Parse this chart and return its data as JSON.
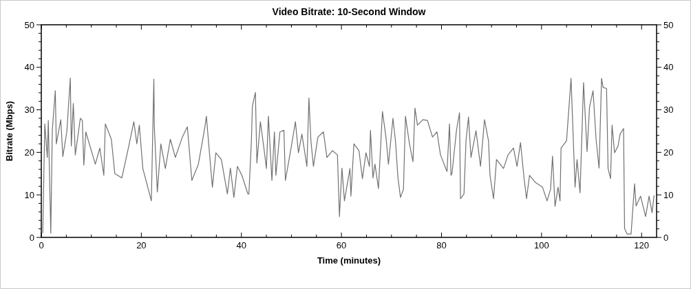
{
  "chart_data": {
    "type": "line",
    "title": "Video Bitrate: 10-Second Window",
    "xlabel": "Time (minutes)",
    "ylabel": "Bitrate (Mbps)",
    "xlim": [
      0,
      123
    ],
    "xticks": [
      0,
      {
        "value": 5,
        "label": null
      },
      {
        "value": 10,
        "label": null
      },
      {
        "value": 15,
        "label": null
      },
      20,
      {
        "value": 25,
        "label": null
      },
      {
        "value": 30,
        "label": null
      },
      {
        "value": 35,
        "label": null
      },
      40,
      {
        "value": 45,
        "label": null
      },
      {
        "value": 50,
        "label": null
      },
      {
        "value": 55,
        "label": null
      },
      60,
      {
        "value": 65,
        "label": null
      },
      {
        "value": 70,
        "label": null
      },
      {
        "value": 75,
        "label": null
      },
      80,
      {
        "value": 85,
        "label": null
      },
      {
        "value": 90,
        "label": null
      },
      {
        "value": 95,
        "label": null
      },
      100,
      {
        "value": 105,
        "label": null
      },
      {
        "value": 110,
        "label": null
      },
      {
        "value": 115,
        "label": null
      },
      120
    ],
    "ylim": [
      0,
      50
    ],
    "yticks": [
      0,
      {
        "value": 2,
        "label": null
      },
      {
        "value": 4,
        "label": null
      },
      {
        "value": 6,
        "label": null
      },
      {
        "value": 8,
        "label": null
      },
      10,
      {
        "value": 12,
        "label": null
      },
      {
        "value": 14,
        "label": null
      },
      {
        "value": 16,
        "label": null
      },
      {
        "value": 18,
        "label": null
      },
      20,
      {
        "value": 22,
        "label": null
      },
      {
        "value": 24,
        "label": null
      },
      {
        "value": 26,
        "label": null
      },
      {
        "value": 28,
        "label": null
      },
      30,
      {
        "value": 32,
        "label": null
      },
      {
        "value": 34,
        "label": null
      },
      {
        "value": 36,
        "label": null
      },
      {
        "value": 38,
        "label": null
      },
      40,
      {
        "value": 42,
        "label": null
      },
      {
        "value": 44,
        "label": null
      },
      {
        "value": 46,
        "label": null
      },
      {
        "value": 48,
        "label": null
      },
      50
    ],
    "y2lim": [
      0,
      50
    ],
    "y2ticks": [
      0,
      {
        "value": 2,
        "label": null
      },
      {
        "value": 4,
        "label": null
      },
      {
        "value": 6,
        "label": null
      },
      {
        "value": 8,
        "label": null
      },
      10,
      {
        "value": 12,
        "label": null
      },
      {
        "value": 14,
        "label": null
      },
      {
        "value": 16,
        "label": null
      },
      {
        "value": 18,
        "label": null
      },
      20,
      {
        "value": 22,
        "label": null
      },
      {
        "value": 24,
        "label": null
      },
      {
        "value": 26,
        "label": null
      },
      {
        "value": 28,
        "label": null
      },
      30,
      {
        "value": 32,
        "label": null
      },
      {
        "value": 34,
        "label": null
      },
      {
        "value": 36,
        "label": null
      },
      {
        "value": 38,
        "label": null
      },
      40,
      {
        "value": 42,
        "label": null
      },
      {
        "value": 44,
        "label": null
      },
      {
        "value": 46,
        "label": null
      },
      {
        "value": 48,
        "label": null
      },
      50
    ],
    "marker": "none",
    "line_style": "solid",
    "series": [
      {
        "color": "#707070",
        "x": [
          0.3,
          0.7,
          1.2,
          1.4,
          1.9,
          2.2,
          2.8,
          3.0,
          3.9,
          4.3,
          5.1,
          5.8,
          6.0,
          6.4,
          6.8,
          7.8,
          8.2,
          8.5,
          8.9,
          10.8,
          11.7,
          12.5,
          12.8,
          14.0,
          14.7,
          16.1,
          17.2,
          18.5,
          19.1,
          19.6,
          20.3,
          22.0,
          22.5,
          22.6,
          23.2,
          23.9,
          24.8,
          25.8,
          26.8,
          28.2,
          29.2,
          30.1,
          31.4,
          32.7,
          33.0,
          34.2,
          34.9,
          36.0,
          37.2,
          37.8,
          38.5,
          39.2,
          40.1,
          41.3,
          41.5,
          42.0,
          42.2,
          42.8,
          43.1,
          43.8,
          44.5,
          45.0,
          45.4,
          46.1,
          46.6,
          46.9,
          47.7,
          48.5,
          48.8,
          50.0,
          50.8,
          51.4,
          52.1,
          53.1,
          53.5,
          53.9,
          54.4,
          55.3,
          56.4,
          57.1,
          58.2,
          59.2,
          59.6,
          60.1,
          60.6,
          61.7,
          61.9,
          62.5,
          63.5,
          64.2,
          64.9,
          65.6,
          65.8,
          66.3,
          66.7,
          67.4,
          68.2,
          68.9,
          69.4,
          70.3,
          70.8,
          71.3,
          71.8,
          72.4,
          72.8,
          73.6,
          74.3,
          74.7,
          75.2,
          76.3,
          77.2,
          78.2,
          79.1,
          79.8,
          81.1,
          81.6,
          81.9,
          82.1,
          83.0,
          83.6,
          83.8,
          84.5,
          84.9,
          85.4,
          85.9,
          86.9,
          87.8,
          88.6,
          89.4,
          89.7,
          90.4,
          91.0,
          92.4,
          93.3,
          94.4,
          95.1,
          95.8,
          96.5,
          97.0,
          97.6,
          98.8,
          100.2,
          101.1,
          101.8,
          102.2,
          102.7,
          103.3,
          103.7,
          103.9,
          105.0,
          105.9,
          106.7,
          107.1,
          107.7,
          108.4,
          109.1,
          109.6,
          110.3,
          110.9,
          111.5,
          112.0,
          112.3,
          113.0,
          113.3,
          113.8,
          114.1,
          114.6,
          115.3,
          115.7,
          116.4,
          116.6,
          117.1,
          117.9,
          118.6,
          118.9,
          119.8,
          120.8,
          121.5,
          122.1,
          122.5
        ],
        "values": [
          1,
          26.7,
          18.8,
          27.5,
          1,
          25.2,
          34.5,
          22,
          27.7,
          19,
          24.8,
          37.5,
          21.5,
          31.5,
          19.4,
          28,
          27.5,
          17,
          24.8,
          17.2,
          21,
          14.6,
          26.7,
          23.1,
          15,
          14,
          19.9,
          27.2,
          22,
          26.4,
          16.2,
          8.6,
          37.2,
          25.9,
          10.7,
          22,
          16.2,
          23.1,
          18.8,
          23.6,
          26,
          13.4,
          17.2,
          25.9,
          28.5,
          11.8,
          19.9,
          18.3,
          10.2,
          16.3,
          9.4,
          16.7,
          14.6,
          10.2,
          10.2,
          22.7,
          30.9,
          34.1,
          17.5,
          27.2,
          21,
          16.2,
          28.5,
          13.4,
          24.8,
          14.6,
          24.8,
          25.2,
          13.4,
          21.5,
          27.2,
          19.9,
          24.3,
          16.7,
          32.8,
          22.7,
          16.7,
          23.6,
          24.8,
          18.8,
          20.4,
          19.4,
          4.9,
          16.3,
          8.6,
          16.2,
          9.7,
          22,
          20.4,
          13.8,
          19.9,
          16.7,
          25.2,
          14,
          17.2,
          11.5,
          29.6,
          23.6,
          17.2,
          28,
          22.7,
          14,
          9.4,
          11.3,
          28.5,
          22,
          17.8,
          30.4,
          26.4,
          27.7,
          27.5,
          23.6,
          24.8,
          19.4,
          15.5,
          26.7,
          14.6,
          15,
          25.2,
          29.3,
          9.1,
          10.2,
          22.7,
          28.3,
          18.8,
          25.1,
          16.7,
          27.7,
          22.7,
          14.6,
          9.1,
          18.3,
          16.2,
          19.4,
          21,
          16.7,
          22.3,
          14,
          9.1,
          14.6,
          12.9,
          11.8,
          8.6,
          11.3,
          19.1,
          7.3,
          11.8,
          8.6,
          21,
          22.7,
          37.4,
          11.8,
          18.3,
          10.5,
          36.4,
          20.2,
          30.7,
          34.5,
          23.1,
          16.3,
          37.4,
          35.3,
          35,
          16.2,
          13.8,
          26.4,
          19.9,
          21.5,
          24.3,
          25.6,
          2.1,
          0.8,
          0.8,
          12.6,
          7.4,
          9.7,
          4.9,
          9.7,
          5.8,
          9.9
        ]
      }
    ]
  }
}
